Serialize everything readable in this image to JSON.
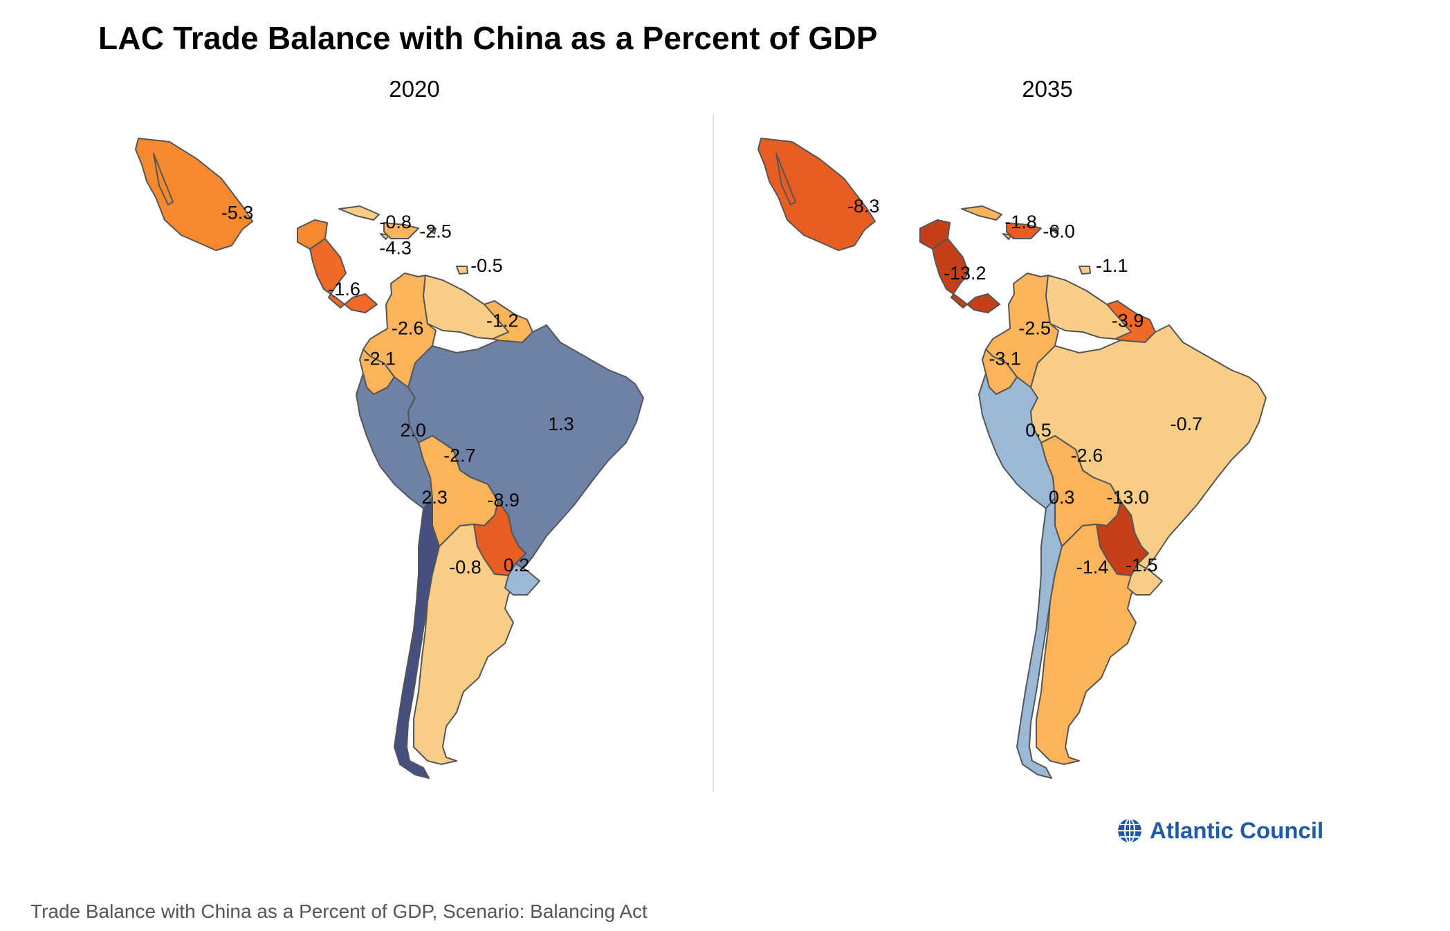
{
  "title": "LAC Trade Balance with China as a Percent of GDP",
  "panels": [
    {
      "year": "2020",
      "countries": [
        {
          "name": "Mexico",
          "value": "-5.3",
          "color": "#f6892d"
        },
        {
          "name": "Guatemala",
          "value": "-4.3",
          "color": "#f6892d"
        },
        {
          "name": "Caribbean",
          "value": "-0.8",
          "color": "#f8cd86"
        },
        {
          "name": "Dominican Republic",
          "value": "-2.5",
          "color": "#fbb45a"
        },
        {
          "name": "Trinidad and Tobago",
          "value": "-0.5",
          "color": "#f8cd86"
        },
        {
          "name": "Central America",
          "value": "-1.6",
          "color": "#f06927"
        },
        {
          "name": "Colombia",
          "value": "-2.6",
          "color": "#fbb45a"
        },
        {
          "name": "Guyana/Suriname",
          "value": "-1.2",
          "color": "#fbb45a"
        },
        {
          "name": "Ecuador",
          "value": "-2.1",
          "color": "#fbb45a"
        },
        {
          "name": "Peru",
          "value": "2.0",
          "color": "#6e82a8"
        },
        {
          "name": "Brazil",
          "value": "1.3",
          "color": "#6e82a8"
        },
        {
          "name": "Bolivia",
          "value": "-2.7",
          "color": "#fbb45a"
        },
        {
          "name": "Chile",
          "value": "2.3",
          "color": "#46507f"
        },
        {
          "name": "Paraguay",
          "value": "-8.9",
          "color": "#e85e22"
        },
        {
          "name": "Argentina",
          "value": "-0.8",
          "color": "#f8cd86"
        },
        {
          "name": "Uruguay",
          "value": "0.2",
          "color": "#9ab9d6"
        }
      ]
    },
    {
      "year": "2035",
      "countries": [
        {
          "name": "Mexico",
          "value": "-8.3",
          "color": "#e85e22"
        },
        {
          "name": "Caribbean",
          "value": "-1.8",
          "color": "#fbb45a"
        },
        {
          "name": "Dominican Republic",
          "value": "-6.0",
          "color": "#e85e22"
        },
        {
          "name": "Trinidad and Tobago",
          "value": "-1.1",
          "color": "#f8cd86"
        },
        {
          "name": "Central America",
          "value": "-13.2",
          "color": "#c54019"
        },
        {
          "name": "Colombia",
          "value": "-2.5",
          "color": "#fbb45a"
        },
        {
          "name": "Guyana/Suriname",
          "value": "-3.9",
          "color": "#f06927"
        },
        {
          "name": "Ecuador",
          "value": "-3.1",
          "color": "#fbb45a"
        },
        {
          "name": "Peru",
          "value": "0.5",
          "color": "#9ab9d6"
        },
        {
          "name": "Brazil",
          "value": "-0.7",
          "color": "#f8cd86"
        },
        {
          "name": "Bolivia",
          "value": "-2.6",
          "color": "#fbb45a"
        },
        {
          "name": "Chile",
          "value": "0.3",
          "color": "#9ab9d6"
        },
        {
          "name": "Paraguay",
          "value": "-13.0",
          "color": "#c54019"
        },
        {
          "name": "Argentina",
          "value": "-1.4",
          "color": "#fbb45a"
        },
        {
          "name": "Uruguay",
          "value": "-1.5",
          "color": "#f8cd86"
        }
      ]
    }
  ],
  "logo": {
    "text": "Atlantic Council",
    "icon": "globe-icon",
    "color": "#1f5aa8"
  },
  "footnote": "Trade Balance with China as a Percent of GDP, Scenario: Balancing Act"
}
